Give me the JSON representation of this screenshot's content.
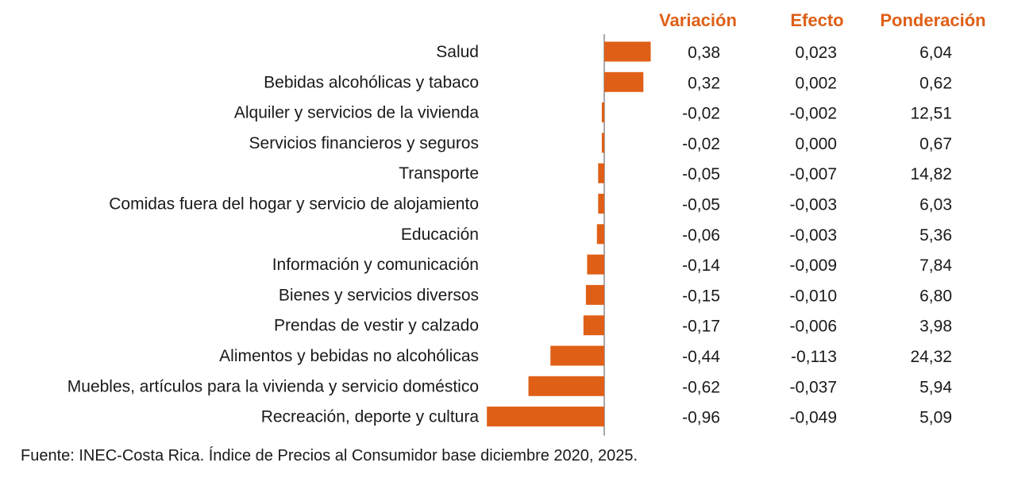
{
  "colors": {
    "bar": "#DF5F16",
    "header": "#DF5F16",
    "axis": "#8c8c8c"
  },
  "chart_data": {
    "type": "bar",
    "orientation": "horizontal",
    "title": "",
    "xlabel": "",
    "ylabel": "",
    "grid": false,
    "legend": "none",
    "columns": [
      "Variación",
      "Efecto",
      "Ponderación"
    ],
    "categories": [
      "Salud",
      "Bebidas alcohólicas y tabaco",
      "Alquiler y servicios de la vivienda",
      "Servicios financieros y seguros",
      "Transporte",
      "Comidas fuera del hogar y servicio de alojamiento",
      "Educación",
      "Información y comunicación",
      "Bienes y servicios diversos",
      "Prendas de vestir y calzado",
      "Alimentos y bebidas no alcohólicas",
      "Muebles, artículos para la vivienda y servicio doméstico",
      "Recreación, deporte y cultura"
    ],
    "values": [
      0.38,
      0.32,
      -0.02,
      -0.02,
      -0.05,
      -0.05,
      -0.06,
      -0.14,
      -0.15,
      -0.17,
      -0.44,
      -0.62,
      -0.96
    ],
    "table": {
      "variacion": [
        "0,38",
        "0,32",
        "-0,02",
        "-0,02",
        "-0,05",
        "-0,05",
        "-0,06",
        "-0,14",
        "-0,15",
        "-0,17",
        "-0,44",
        "-0,62",
        "-0,96"
      ],
      "efecto": [
        "0,023",
        "0,002",
        "-0,002",
        "0,000",
        "-0,007",
        "-0,003",
        "-0,003",
        "-0,009",
        "-0,010",
        "-0,006",
        "-0,113",
        "-0,037",
        "-0,049"
      ],
      "ponderacion": [
        "6,04",
        "0,62",
        "12,51",
        "0,67",
        "14,82",
        "6,03",
        "5,36",
        "7,84",
        "6,80",
        "3,98",
        "24,32",
        "5,94",
        "5,09"
      ]
    }
  },
  "footer": "Fuente: INEC-Costa Rica. Índice de Precios al Consumidor base diciembre 2020, 2025."
}
